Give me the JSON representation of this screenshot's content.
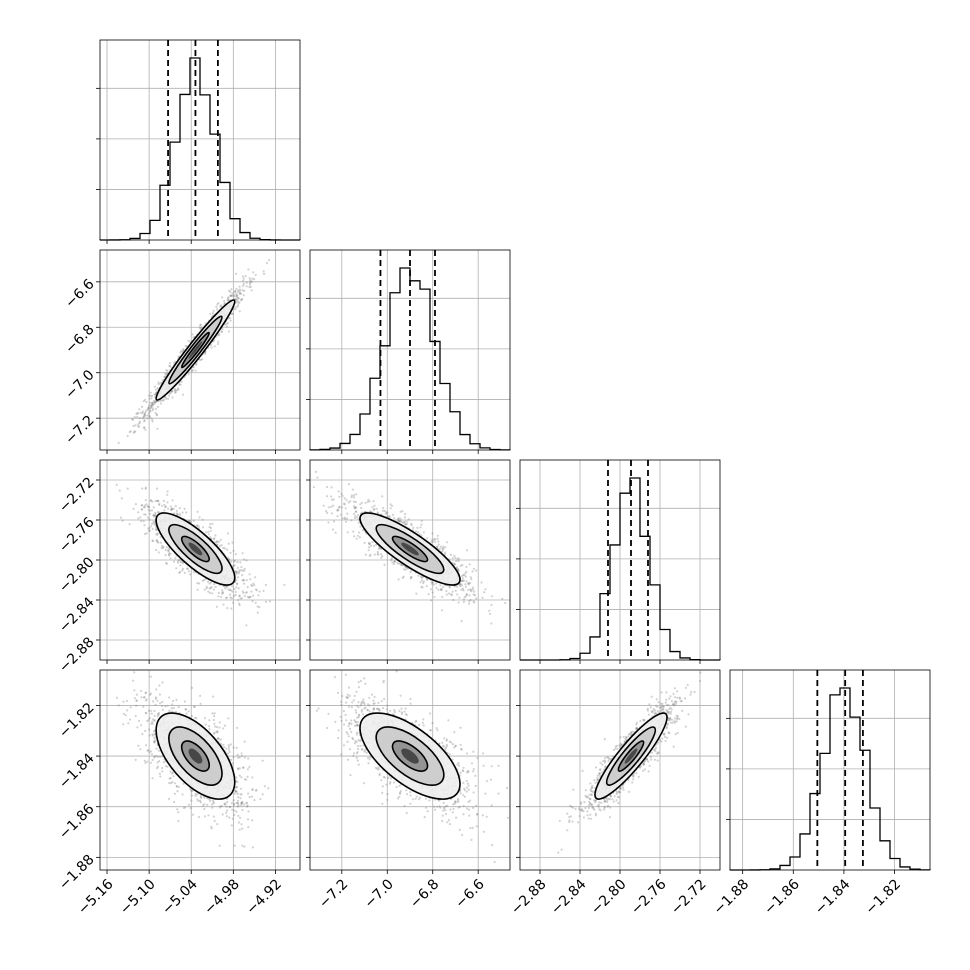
{
  "chart_data": {
    "type": "scatter",
    "layout": "corner-plot",
    "grid": true,
    "scatter_color": "#7f7f7f",
    "line_color": "#000000",
    "parameters": [
      {
        "range": [
          -5.17,
          -4.885
        ],
        "ticks": [
          -5.16,
          -5.1,
          -5.04,
          -4.98,
          -4.92
        ],
        "tick_labels": [
          "−5.16",
          "−5.10",
          "−5.04",
          "−4.98",
          "−4.92"
        ],
        "quantiles": [
          -5.073,
          -5.034,
          -5.002
        ],
        "median": -5.034,
        "sigma": 0.028,
        "hist_bins": 20
      },
      {
        "range": [
          -7.34,
          -6.46
        ],
        "ticks": [
          -7.2,
          -7.0,
          -6.8,
          -6.6
        ],
        "tick_labels": [
          "−7.2",
          "−7.0",
          "−6.8",
          "−6.6"
        ],
        "quantiles": [
          -7.03,
          -6.9,
          -6.79
        ],
        "median": -6.9,
        "sigma": 0.11,
        "hist_bins": 20
      },
      {
        "range": [
          -2.9,
          -2.7
        ],
        "ticks": [
          -2.88,
          -2.84,
          -2.8,
          -2.76,
          -2.72
        ],
        "tick_labels": [
          "−2.88",
          "−2.84",
          "−2.80",
          "−2.76",
          "−2.72"
        ],
        "quantiles": [
          -2.812,
          -2.789,
          -2.772
        ],
        "median": -2.789,
        "sigma": 0.018,
        "hist_bins": 20
      },
      {
        "range": [
          -1.885,
          -1.806
        ],
        "ticks": [
          -1.88,
          -1.86,
          -1.84,
          -1.82
        ],
        "tick_labels": [
          "−1.88",
          "−1.86",
          "−1.84",
          "−1.82"
        ],
        "quantiles": [
          -1.8505,
          -1.8395,
          -1.8325
        ],
        "median": -1.84,
        "sigma": 0.0085,
        "hist_bins": 20
      }
    ],
    "correlations": [
      [
        1.0,
        0.97,
        -0.8,
        -0.6
      ],
      [
        0.97,
        1.0,
        -0.85,
        -0.65
      ],
      [
        -0.8,
        -0.85,
        1.0,
        0.9
      ],
      [
        -0.6,
        -0.65,
        0.9,
        1.0
      ]
    ]
  }
}
